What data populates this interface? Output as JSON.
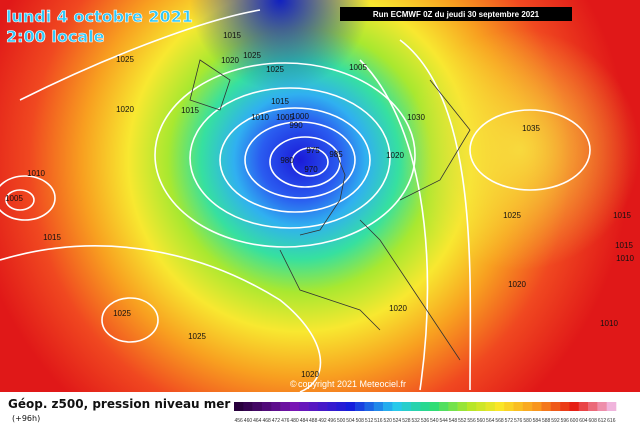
{
  "header": {
    "date": "lundi 4 octobre 2021",
    "time": "2:00 locale",
    "run": "Run ECMWF 0Z du jeudi 30 septembre 2021"
  },
  "copyright": "copyright 2021 Meteociel.fr",
  "footer": {
    "title": "Géop. z500, pression niveau mer",
    "lead": "(+96h)"
  },
  "isobar_labels": [
    "1015",
    "1025",
    "1020",
    "1025",
    "1025",
    "1005",
    "1020",
    "1015",
    "1015",
    "1010",
    "1005",
    "1000",
    "990",
    "975",
    "985",
    "980",
    "970",
    "1030",
    "1035",
    "1020",
    "1010",
    "1005",
    "1015",
    "1025",
    "1015",
    "1015",
    "1010",
    "1020",
    "1025",
    "1025",
    "1020",
    "1010",
    "1020"
  ],
  "colorbar": {
    "levels": [
      456,
      460,
      464,
      468,
      472,
      476,
      480,
      484,
      488,
      492,
      496,
      500,
      504,
      508,
      512,
      516,
      520,
      524,
      528,
      532,
      536,
      540,
      544,
      548,
      552,
      556,
      560,
      564,
      568,
      572,
      576,
      580,
      584,
      588,
      592,
      596,
      600,
      604,
      608,
      612,
      616
    ]
  }
}
